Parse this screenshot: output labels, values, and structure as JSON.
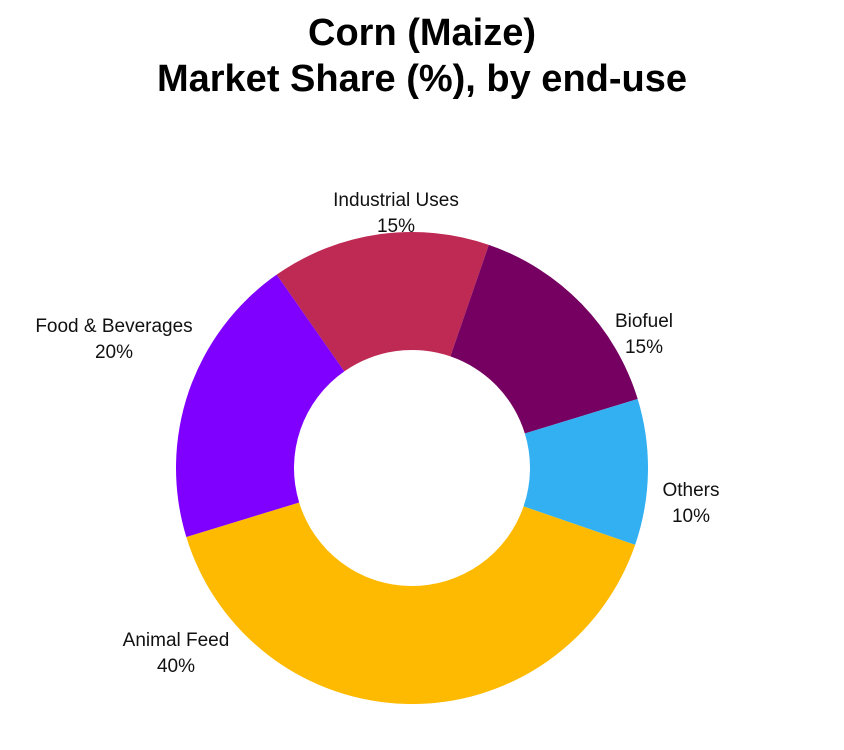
{
  "chart_data": {
    "type": "pie",
    "donut": true,
    "title_lines": [
      "Corn (Maize)",
      "Market Share (%), by end-use"
    ],
    "slices": [
      {
        "label": "Industrial Uses",
        "value": 15,
        "value_label": "15%",
        "color": "#BF2A55"
      },
      {
        "label": "Biofuel",
        "value": 15,
        "value_label": "15%",
        "color": "#750061"
      },
      {
        "label": "Others",
        "value": 10,
        "value_label": "10%",
        "color": "#33B0F2"
      },
      {
        "label": "Animal Feed",
        "value": 40,
        "value_label": "40%",
        "color": "#FDBA00"
      },
      {
        "label": "Food & Beverages",
        "value": 20,
        "value_label": "20%",
        "color": "#8000FF"
      }
    ]
  }
}
